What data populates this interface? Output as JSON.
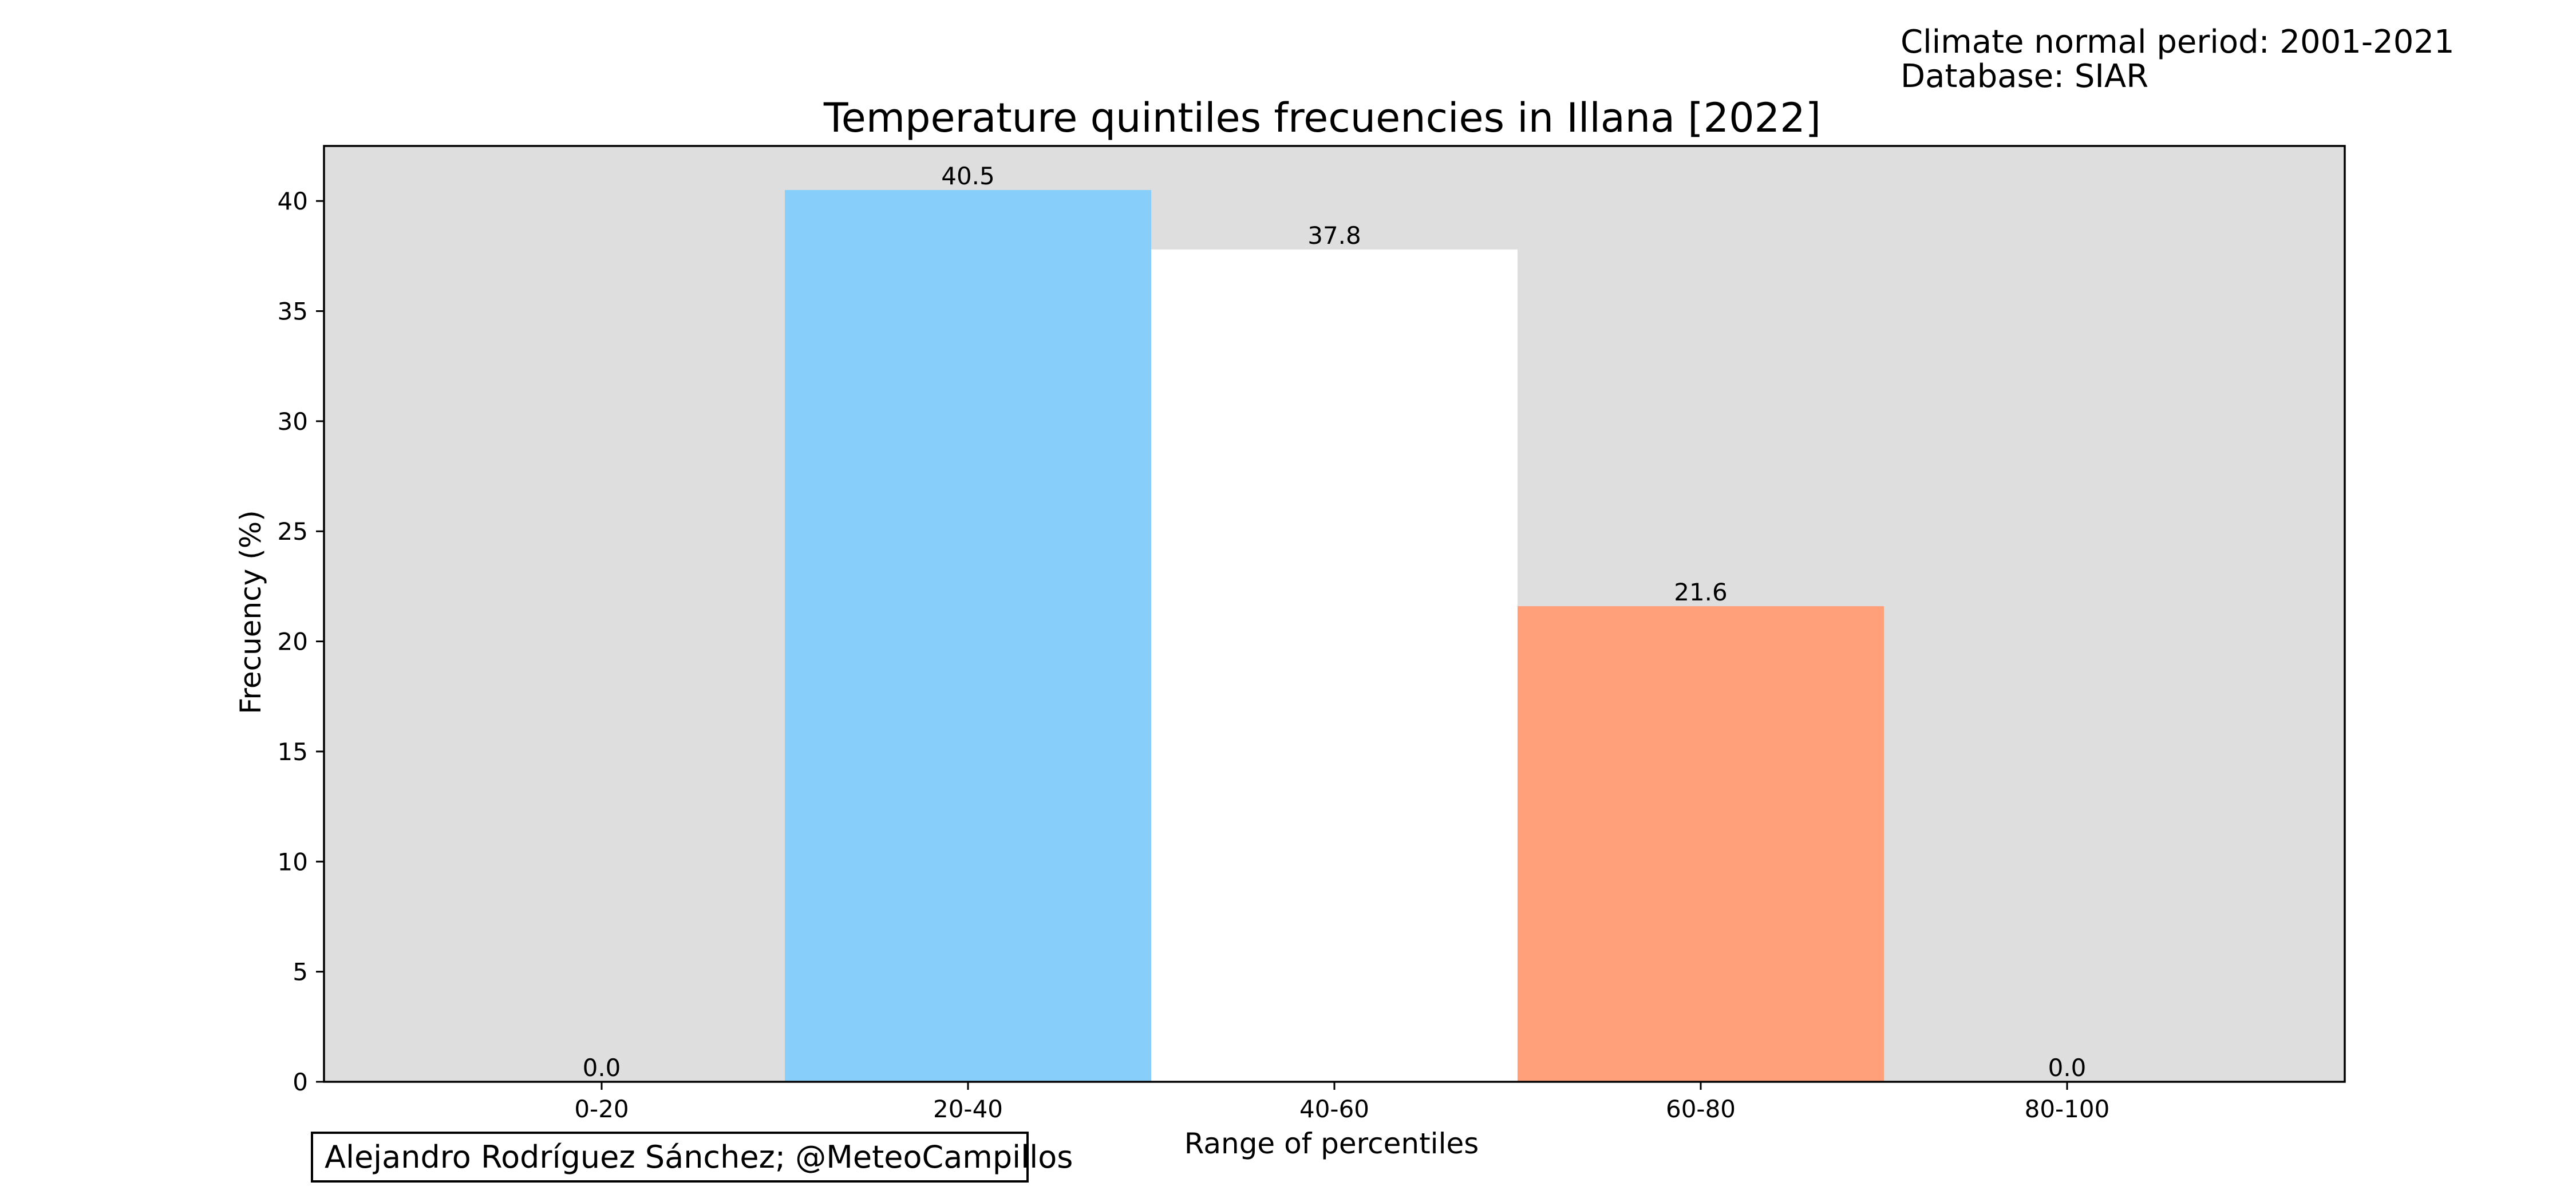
{
  "annotations": {
    "climate_normal": "Climate normal period: 2001-2021",
    "database": "Database: SIAR",
    "credit": "Alejandro Rodríguez Sánchez; @MeteoCampillos"
  },
  "colors": {
    "plot_background": "#dedede",
    "axes_edge": "#000000"
  },
  "chart_data": {
    "type": "bar",
    "title": "Temperature quintiles frecuencies in Illana [2022]",
    "xlabel": "Range of percentiles",
    "ylabel": "Frecuency (%)",
    "categories": [
      "0-20",
      "20-40",
      "40-60",
      "60-80",
      "80-100"
    ],
    "values": [
      0.0,
      40.5,
      37.8,
      21.6,
      0.0
    ],
    "value_labels": [
      "0.0",
      "40.5",
      "37.8",
      "21.6",
      "0.0"
    ],
    "bar_colors": [
      "#0000ff",
      "#87cefa",
      "#ffffff",
      "#ffa07a",
      "#ff0000"
    ],
    "yticks": [
      0,
      5,
      10,
      15,
      20,
      25,
      30,
      35,
      40
    ],
    "ylim": [
      0,
      42.5
    ],
    "grid": false,
    "legend": false
  }
}
